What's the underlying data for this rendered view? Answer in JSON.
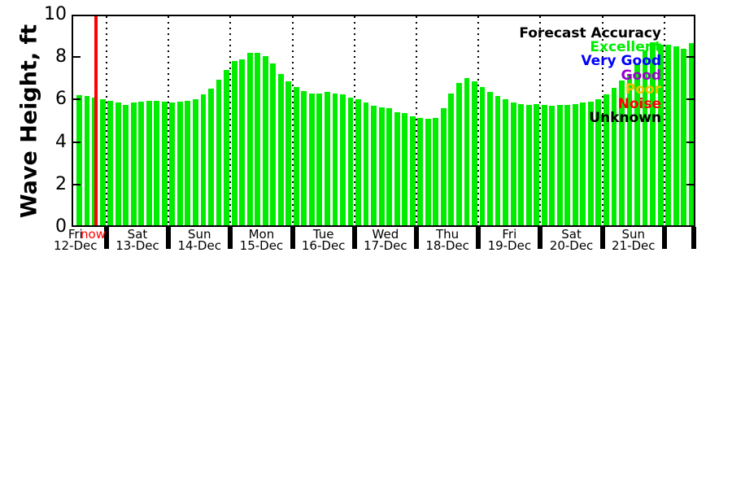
{
  "chart_data": {
    "type": "bar",
    "ylabel": "Wave Height, ft",
    "ylim": [
      0,
      10
    ],
    "yticks": [
      0,
      2,
      4,
      6,
      8,
      10
    ],
    "bar_color": "#00ed00",
    "now": {
      "label": "now",
      "color": "#ff0000",
      "slot": 3.2
    },
    "days": [
      {
        "day": "Fri",
        "date": "12-Dec",
        "pad_before": 0.5,
        "bars": [
          6.2,
          6.15,
          6.1,
          6.0
        ]
      },
      {
        "day": "Sat",
        "date": "13-Dec",
        "bars": [
          5.95,
          5.85,
          5.75,
          5.85,
          5.9,
          5.95,
          5.95,
          5.9
        ]
      },
      {
        "day": "Sun",
        "date": "14-Dec",
        "bars": [
          5.85,
          5.9,
          5.95,
          6.0,
          6.25,
          6.5,
          6.95,
          7.4
        ]
      },
      {
        "day": "Mon",
        "date": "15-Dec",
        "bars": [
          7.8,
          7.9,
          8.2,
          8.2,
          8.05,
          7.7,
          7.2,
          6.85
        ]
      },
      {
        "day": "Tue",
        "date": "16-Dec",
        "bars": [
          6.6,
          6.4,
          6.3,
          6.3,
          6.35,
          6.3,
          6.25,
          6.1
        ]
      },
      {
        "day": "Wed",
        "date": "17-Dec",
        "bars": [
          6.0,
          5.85,
          5.7,
          5.65,
          5.6,
          5.4,
          5.35,
          5.2
        ]
      },
      {
        "day": "Thu",
        "date": "18-Dec",
        "bars": [
          5.15,
          5.1,
          5.15,
          5.6,
          6.3,
          6.8,
          7.0,
          6.85
        ]
      },
      {
        "day": "Fri",
        "date": "19-Dec",
        "bars": [
          6.6,
          6.35,
          6.15,
          6.0,
          5.85,
          5.8,
          5.75,
          5.8
        ]
      },
      {
        "day": "Sat",
        "date": "20-Dec",
        "bars": [
          5.75,
          5.7,
          5.75,
          5.75,
          5.8,
          5.85,
          5.9,
          6.0
        ]
      },
      {
        "day": "Sun",
        "date": "21-Dec",
        "bars": [
          6.25,
          6.55,
          6.9,
          7.2,
          7.7,
          8.3,
          8.7,
          8.6
        ]
      },
      {
        "day": "",
        "date": "",
        "bars": [
          8.6,
          8.5,
          8.4,
          8.65
        ]
      }
    ],
    "legend": {
      "title": "Forecast Accuracy",
      "entries": [
        {
          "label": "Excellent",
          "color": "#00ed00"
        },
        {
          "label": "Very Good",
          "color": "#0000ff"
        },
        {
          "label": "Good",
          "color": "#9900cc"
        },
        {
          "label": "Poor",
          "color": "#f0c000"
        },
        {
          "label": "Noise",
          "color": "#ff0000"
        },
        {
          "label": "Unknown",
          "color": "#000000"
        }
      ]
    }
  }
}
